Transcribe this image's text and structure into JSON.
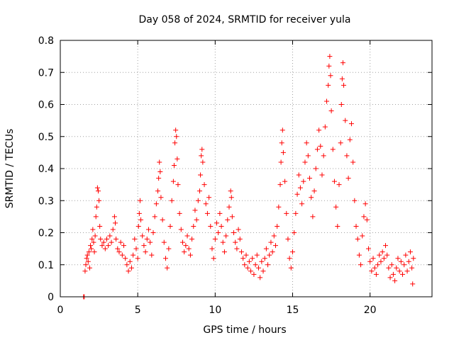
{
  "chart_data": {
    "type": "scatter",
    "title": "Day 058 of 2024, SRMTID for receiver yula",
    "xlabel": "GPS time / hours",
    "ylabel": "SRMTID / TECUs",
    "xlim": [
      0,
      24
    ],
    "ylim": [
      0,
      0.8
    ],
    "xticks": [
      0,
      5,
      10,
      15,
      20
    ],
    "yticks": [
      0,
      0.1,
      0.2,
      0.3,
      0.4,
      0.5,
      0.6,
      0.7,
      0.8
    ],
    "xtick_labels": [
      "0",
      "5",
      "10",
      "15",
      "20"
    ],
    "ytick_labels": [
      "0",
      "0.1",
      "0.2",
      "0.3",
      "0.4",
      "0.5",
      "0.6",
      "0.7",
      "0.8"
    ],
    "grid": true,
    "marker": "+",
    "color": "#ff0000",
    "series": [
      {
        "name": "SRMTID",
        "points": [
          [
            1.5,
            0.0
          ],
          [
            1.55,
            0.0
          ],
          [
            1.6,
            0.08
          ],
          [
            1.65,
            0.1
          ],
          [
            1.7,
            0.12
          ],
          [
            1.75,
            0.13
          ],
          [
            1.8,
            0.11
          ],
          [
            1.85,
            0.14
          ],
          [
            1.9,
            0.09
          ],
          [
            1.95,
            0.16
          ],
          [
            2.0,
            0.15
          ],
          [
            2.05,
            0.18
          ],
          [
            2.1,
            0.21
          ],
          [
            2.15,
            0.17
          ],
          [
            2.2,
            0.14
          ],
          [
            2.25,
            0.19
          ],
          [
            2.3,
            0.25
          ],
          [
            2.35,
            0.28
          ],
          [
            2.4,
            0.34
          ],
          [
            2.45,
            0.33
          ],
          [
            2.5,
            0.3
          ],
          [
            2.55,
            0.22
          ],
          [
            2.6,
            0.18
          ],
          [
            2.7,
            0.16
          ],
          [
            2.8,
            0.17
          ],
          [
            2.9,
            0.15
          ],
          [
            3.0,
            0.18
          ],
          [
            3.1,
            0.16
          ],
          [
            3.2,
            0.19
          ],
          [
            3.3,
            0.17
          ],
          [
            3.4,
            0.21
          ],
          [
            3.5,
            0.25
          ],
          [
            3.55,
            0.23
          ],
          [
            3.6,
            0.18
          ],
          [
            3.7,
            0.15
          ],
          [
            3.8,
            0.14
          ],
          [
            3.9,
            0.17
          ],
          [
            4.0,
            0.13
          ],
          [
            4.1,
            0.16
          ],
          [
            4.2,
            0.12
          ],
          [
            4.3,
            0.1
          ],
          [
            4.4,
            0.08
          ],
          [
            4.5,
            0.11
          ],
          [
            4.6,
            0.09
          ],
          [
            4.7,
            0.13
          ],
          [
            4.8,
            0.18
          ],
          [
            4.9,
            0.15
          ],
          [
            5.0,
            0.12
          ],
          [
            5.05,
            0.22
          ],
          [
            5.1,
            0.26
          ],
          [
            5.15,
            0.3
          ],
          [
            5.2,
            0.24
          ],
          [
            5.3,
            0.19
          ],
          [
            5.4,
            0.16
          ],
          [
            5.5,
            0.14
          ],
          [
            5.6,
            0.18
          ],
          [
            5.7,
            0.21
          ],
          [
            5.8,
            0.17
          ],
          [
            5.9,
            0.13
          ],
          [
            6.0,
            0.2
          ],
          [
            6.1,
            0.25
          ],
          [
            6.2,
            0.29
          ],
          [
            6.3,
            0.33
          ],
          [
            6.35,
            0.37
          ],
          [
            6.4,
            0.42
          ],
          [
            6.45,
            0.39
          ],
          [
            6.5,
            0.31
          ],
          [
            6.6,
            0.24
          ],
          [
            6.7,
            0.17
          ],
          [
            6.8,
            0.12
          ],
          [
            6.9,
            0.09
          ],
          [
            7.0,
            0.15
          ],
          [
            7.1,
            0.22
          ],
          [
            7.2,
            0.3
          ],
          [
            7.3,
            0.36
          ],
          [
            7.35,
            0.41
          ],
          [
            7.4,
            0.48
          ],
          [
            7.45,
            0.52
          ],
          [
            7.5,
            0.5
          ],
          [
            7.55,
            0.43
          ],
          [
            7.6,
            0.35
          ],
          [
            7.7,
            0.26
          ],
          [
            7.8,
            0.21
          ],
          [
            7.9,
            0.17
          ],
          [
            8.0,
            0.14
          ],
          [
            8.1,
            0.16
          ],
          [
            8.2,
            0.19
          ],
          [
            8.3,
            0.15
          ],
          [
            8.4,
            0.13
          ],
          [
            8.5,
            0.18
          ],
          [
            8.6,
            0.22
          ],
          [
            8.7,
            0.27
          ],
          [
            8.8,
            0.24
          ],
          [
            8.9,
            0.3
          ],
          [
            9.0,
            0.33
          ],
          [
            9.05,
            0.38
          ],
          [
            9.1,
            0.44
          ],
          [
            9.15,
            0.46
          ],
          [
            9.2,
            0.42
          ],
          [
            9.3,
            0.35
          ],
          [
            9.4,
            0.29
          ],
          [
            9.5,
            0.26
          ],
          [
            9.6,
            0.31
          ],
          [
            9.7,
            0.22
          ],
          [
            9.8,
            0.15
          ],
          [
            9.9,
            0.12
          ],
          [
            10.0,
            0.18
          ],
          [
            10.1,
            0.23
          ],
          [
            10.2,
            0.2
          ],
          [
            10.3,
            0.26
          ],
          [
            10.4,
            0.22
          ],
          [
            10.5,
            0.17
          ],
          [
            10.6,
            0.14
          ],
          [
            10.7,
            0.19
          ],
          [
            10.8,
            0.24
          ],
          [
            10.9,
            0.28
          ],
          [
            11.0,
            0.33
          ],
          [
            11.05,
            0.31
          ],
          [
            11.1,
            0.25
          ],
          [
            11.2,
            0.2
          ],
          [
            11.3,
            0.17
          ],
          [
            11.4,
            0.15
          ],
          [
            11.5,
            0.21
          ],
          [
            11.6,
            0.18
          ],
          [
            11.7,
            0.14
          ],
          [
            11.8,
            0.12
          ],
          [
            11.9,
            0.1
          ],
          [
            12.0,
            0.13
          ],
          [
            12.1,
            0.09
          ],
          [
            12.2,
            0.11
          ],
          [
            12.3,
            0.08
          ],
          [
            12.4,
            0.12
          ],
          [
            12.5,
            0.07
          ],
          [
            12.6,
            0.1
          ],
          [
            12.7,
            0.13
          ],
          [
            12.8,
            0.09
          ],
          [
            12.9,
            0.06
          ],
          [
            13.0,
            0.11
          ],
          [
            13.1,
            0.08
          ],
          [
            13.2,
            0.12
          ],
          [
            13.3,
            0.15
          ],
          [
            13.4,
            0.1
          ],
          [
            13.5,
            0.13
          ],
          [
            13.6,
            0.17
          ],
          [
            13.7,
            0.14
          ],
          [
            13.8,
            0.19
          ],
          [
            13.9,
            0.16
          ],
          [
            14.0,
            0.22
          ],
          [
            14.1,
            0.28
          ],
          [
            14.2,
            0.35
          ],
          [
            14.25,
            0.42
          ],
          [
            14.3,
            0.48
          ],
          [
            14.35,
            0.52
          ],
          [
            14.4,
            0.45
          ],
          [
            14.5,
            0.36
          ],
          [
            14.6,
            0.26
          ],
          [
            14.7,
            0.18
          ],
          [
            14.8,
            0.12
          ],
          [
            14.9,
            0.09
          ],
          [
            15.0,
            0.14
          ],
          [
            15.1,
            0.2
          ],
          [
            15.2,
            0.26
          ],
          [
            15.3,
            0.32
          ],
          [
            15.4,
            0.38
          ],
          [
            15.5,
            0.34
          ],
          [
            15.6,
            0.29
          ],
          [
            15.7,
            0.36
          ],
          [
            15.8,
            0.42
          ],
          [
            15.9,
            0.48
          ],
          [
            16.0,
            0.44
          ],
          [
            16.1,
            0.37
          ],
          [
            16.2,
            0.31
          ],
          [
            16.3,
            0.25
          ],
          [
            16.4,
            0.33
          ],
          [
            16.5,
            0.4
          ],
          [
            16.6,
            0.46
          ],
          [
            16.7,
            0.52
          ],
          [
            16.8,
            0.47
          ],
          [
            16.9,
            0.38
          ],
          [
            17.0,
            0.44
          ],
          [
            17.1,
            0.53
          ],
          [
            17.2,
            0.61
          ],
          [
            17.3,
            0.66
          ],
          [
            17.35,
            0.72
          ],
          [
            17.4,
            0.75
          ],
          [
            17.45,
            0.69
          ],
          [
            17.5,
            0.58
          ],
          [
            17.6,
            0.46
          ],
          [
            17.7,
            0.36
          ],
          [
            17.8,
            0.28
          ],
          [
            17.9,
            0.22
          ],
          [
            18.0,
            0.35
          ],
          [
            18.1,
            0.48
          ],
          [
            18.15,
            0.6
          ],
          [
            18.2,
            0.68
          ],
          [
            18.25,
            0.73
          ],
          [
            18.3,
            0.66
          ],
          [
            18.4,
            0.55
          ],
          [
            18.5,
            0.44
          ],
          [
            18.6,
            0.37
          ],
          [
            18.7,
            0.49
          ],
          [
            18.8,
            0.54
          ],
          [
            18.9,
            0.42
          ],
          [
            19.0,
            0.3
          ],
          [
            19.1,
            0.22
          ],
          [
            19.2,
            0.18
          ],
          [
            19.3,
            0.13
          ],
          [
            19.4,
            0.1
          ],
          [
            19.5,
            0.19
          ],
          [
            19.6,
            0.25
          ],
          [
            19.7,
            0.29
          ],
          [
            19.8,
            0.24
          ],
          [
            19.9,
            0.15
          ],
          [
            20.0,
            0.11
          ],
          [
            20.1,
            0.08
          ],
          [
            20.2,
            0.12
          ],
          [
            20.3,
            0.09
          ],
          [
            20.4,
            0.07
          ],
          [
            20.5,
            0.1
          ],
          [
            20.6,
            0.13
          ],
          [
            20.7,
            0.11
          ],
          [
            20.8,
            0.14
          ],
          [
            20.9,
            0.12
          ],
          [
            21.0,
            0.16
          ],
          [
            21.1,
            0.13
          ],
          [
            21.2,
            0.09
          ],
          [
            21.3,
            0.06
          ],
          [
            21.4,
            0.1
          ],
          [
            21.5,
            0.07
          ],
          [
            21.6,
            0.05
          ],
          [
            21.7,
            0.09
          ],
          [
            21.8,
            0.12
          ],
          [
            21.9,
            0.08
          ],
          [
            22.0,
            0.11
          ],
          [
            22.1,
            0.07
          ],
          [
            22.2,
            0.1
          ],
          [
            22.3,
            0.13
          ],
          [
            22.4,
            0.08
          ],
          [
            22.5,
            0.11
          ],
          [
            22.6,
            0.14
          ],
          [
            22.7,
            0.09
          ],
          [
            22.75,
            0.04
          ],
          [
            22.8,
            0.12
          ]
        ]
      }
    ]
  }
}
